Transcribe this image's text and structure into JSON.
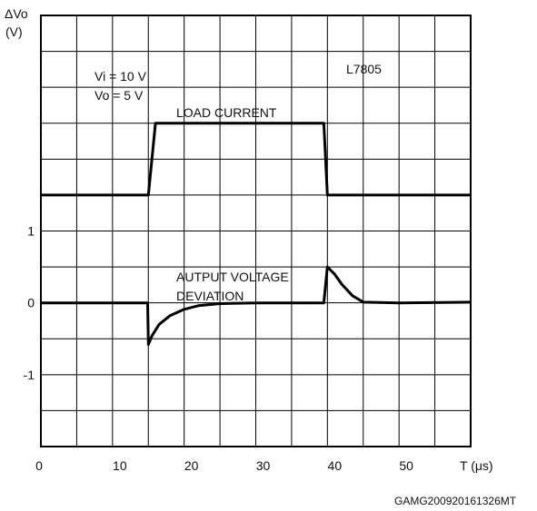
{
  "chart_data": {
    "type": "line",
    "ylabel_top": "ΔVo",
    "ylabel_unit": "(V)",
    "xlabel": "T (μs)",
    "xlim": [
      0,
      60
    ],
    "ylim": [
      -2,
      4
    ],
    "grid": true,
    "x_ticks": [
      "0",
      "10",
      "20",
      "30",
      "40",
      "50"
    ],
    "y_ticks": [
      "1",
      "0",
      "-1"
    ],
    "conditions": [
      "Vi = 10 V",
      "Vo = 5 V"
    ],
    "part_label": "L7805",
    "footer_code": "GAMG200920161326MT",
    "series": [
      {
        "name": "LOAD CURRENT",
        "points": [
          [
            0,
            1.5
          ],
          [
            15,
            1.5
          ],
          [
            16,
            2.5
          ],
          [
            39.5,
            2.5
          ],
          [
            40,
            1.5
          ],
          [
            60,
            1.5
          ]
        ]
      },
      {
        "name": "AUTPUT VOLTAGE DEVIATION",
        "points": [
          [
            0,
            0
          ],
          [
            14.9,
            0
          ],
          [
            15,
            -0.58
          ],
          [
            15.5,
            -0.46
          ],
          [
            16.5,
            -0.3
          ],
          [
            18,
            -0.18
          ],
          [
            20,
            -0.09
          ],
          [
            22,
            -0.04
          ],
          [
            25,
            -0.01
          ],
          [
            30,
            0
          ],
          [
            35,
            0
          ],
          [
            39.5,
            0
          ],
          [
            40,
            0.5
          ],
          [
            41,
            0.4
          ],
          [
            42,
            0.26
          ],
          [
            43.5,
            0.1
          ],
          [
            45,
            0.01
          ],
          [
            50,
            0
          ],
          [
            60,
            0.01
          ]
        ]
      }
    ]
  }
}
